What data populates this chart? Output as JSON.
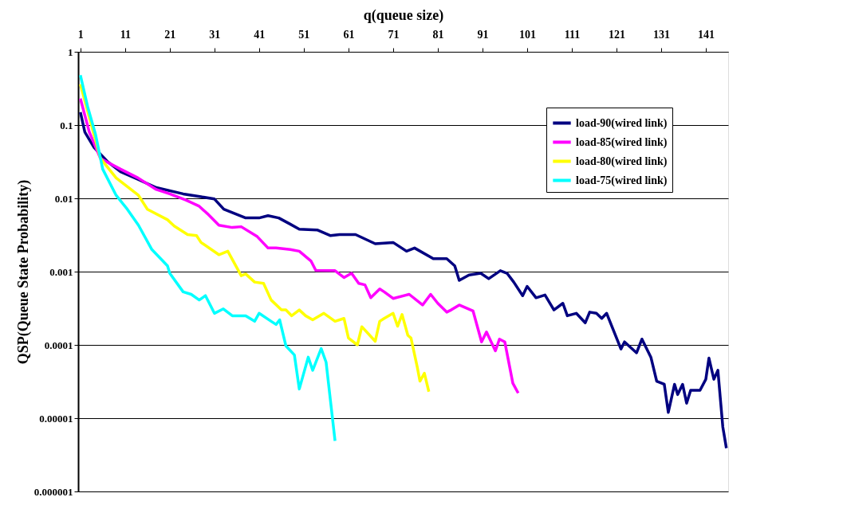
{
  "chart_data": {
    "type": "line",
    "xlabel": "q(queue size)",
    "ylabel": "QSP(Queue State Probability)",
    "xlim": [
      0.5,
      146
    ],
    "xticks": [
      1,
      11,
      21,
      31,
      41,
      51,
      61,
      71,
      81,
      91,
      101,
      111,
      121,
      131,
      141
    ],
    "ylim": [
      1e-06,
      1
    ],
    "yticks": [
      1,
      0.1,
      0.01,
      0.001,
      0.0001,
      {
        "value": 1e-05,
        "label": "0.00001"
      },
      {
        "value": 1e-06,
        "label": "0.000001"
      }
    ],
    "log": "y",
    "grid": "y",
    "legend": "top right",
    "marker": "none",
    "line_style": "solid",
    "series": [
      {
        "name": "load-90(wired link)",
        "color": "#000080",
        "x": [
          1,
          2,
          4,
          7,
          10,
          14,
          18,
          24,
          28,
          31,
          33.1,
          38,
          41,
          43,
          45.4,
          47.8,
          50,
          54,
          57,
          59,
          62.6,
          67,
          71,
          74,
          75.8,
          80,
          83,
          84.8,
          85.8,
          88,
          90.6,
          92.4,
          95,
          96.5,
          98,
          100,
          101,
          103,
          105,
          107,
          109,
          110,
          112,
          114,
          115,
          116.5,
          117.7,
          118.8,
          122,
          122.8,
          125.5,
          126.7,
          128.7,
          130,
          131.7,
          132.6,
          134,
          134.7,
          135.8,
          136.7,
          137.6,
          139.7,
          141,
          141.7,
          142.8,
          143.7,
          144.8,
          145.6
        ],
        "values": [
          0.15,
          0.08,
          0.05,
          0.032,
          0.023,
          0.018,
          0.014,
          0.0115,
          0.0105,
          0.0098,
          0.0071,
          0.0054,
          0.0054,
          0.0058,
          0.0054,
          0.0045,
          0.0038,
          0.0037,
          0.0031,
          0.0032,
          0.0032,
          0.0024,
          0.0025,
          0.0019,
          0.0021,
          0.0015,
          0.0015,
          0.0012,
          0.00076,
          0.0009,
          0.00095,
          0.0008,
          0.00103,
          0.00095,
          0.00072,
          0.00047,
          0.00063,
          0.00044,
          0.00048,
          0.0003,
          0.00037,
          0.00025,
          0.00027,
          0.0002,
          0.00028,
          0.00027,
          0.00023,
          0.00027,
          8.8e-05,
          0.00011,
          7.8e-05,
          0.00012,
          6.8e-05,
          3.2e-05,
          2.9e-05,
          1.2e-05,
          2.9e-05,
          2.1e-05,
          2.9e-05,
          1.6e-05,
          2.4e-05,
          2.4e-05,
          3.4e-05,
          6.6e-05,
          3.4e-05,
          4.5e-05,
          7.6e-06,
          3.9e-06
        ]
      },
      {
        "name": "load-85(wired link)",
        "color": "#ff00ff",
        "x": [
          1,
          3,
          5.5,
          10,
          13.9,
          18,
          21,
          24.6,
          27.6,
          29.4,
          32,
          35,
          37,
          40.6,
          43,
          44.8,
          48,
          50,
          52.6,
          53.7,
          58,
          60,
          61.7,
          63.3,
          64.7,
          66,
          68,
          69,
          71,
          74.6,
          77.6,
          79.4,
          81,
          83,
          84,
          85.8,
          88.9,
          90.8,
          91.9,
          93.9,
          94.8,
          96,
          97.8,
          99
        ],
        "values": [
          0.23,
          0.08,
          0.035,
          0.025,
          0.019,
          0.0132,
          0.0115,
          0.0095,
          0.0078,
          0.0062,
          0.0043,
          0.004,
          0.0041,
          0.003,
          0.0021,
          0.0021,
          0.002,
          0.0019,
          0.0014,
          0.00104,
          0.00103,
          0.00083,
          0.00095,
          0.00069,
          0.00066,
          0.00044,
          0.00058,
          0.00053,
          0.00043,
          0.00049,
          0.00035,
          0.00049,
          0.00037,
          0.00028,
          0.0003,
          0.00035,
          0.00029,
          0.00011,
          0.00015,
          8.3e-05,
          0.00012,
          0.00011,
          3e-05,
          2.2e-05
        ]
      },
      {
        "name": "load-80(wired link)",
        "color": "#ffff00",
        "x": [
          1,
          5.5,
          9,
          14,
          16,
          20.5,
          22,
          25,
          27,
          28,
          32,
          34,
          37,
          38,
          40,
          42,
          43.7,
          46,
          47,
          48.3,
          50,
          51.4,
          53,
          55.5,
          58,
          60,
          61,
          63,
          64,
          67,
          68,
          69,
          71,
          72,
          73,
          74.3,
          75,
          76.4,
          77,
          78,
          79
        ],
        "values": [
          0.36,
          0.035,
          0.019,
          0.011,
          0.0071,
          0.0051,
          0.0042,
          0.0032,
          0.0031,
          0.0025,
          0.0017,
          0.0019,
          0.00088,
          0.00093,
          0.00072,
          0.00069,
          0.00041,
          0.0003,
          0.0003,
          0.00025,
          0.0003,
          0.00025,
          0.00022,
          0.00027,
          0.00021,
          0.00023,
          0.000124,
          0.0001,
          0.000177,
          0.000112,
          0.00021,
          0.00023,
          0.00027,
          0.00018,
          0.00026,
          0.000135,
          0.000124,
          5e-05,
          3.2e-05,
          4.1e-05,
          2.3e-05
        ]
      },
      {
        "name": "load-75(wired link)",
        "color": "#00ffff",
        "x": [
          1,
          2.6,
          4.4,
          6,
          9,
          11.5,
          14,
          17,
          20.5,
          21,
          24,
          25.8,
          27.6,
          29,
          31,
          33,
          35,
          38,
          40,
          41,
          43.7,
          44.8,
          45.6,
          47,
          48.9,
          50,
          52,
          53,
          54.9,
          56,
          58
        ],
        "values": [
          0.48,
          0.18,
          0.074,
          0.025,
          0.011,
          0.0071,
          0.0043,
          0.002,
          0.0012,
          0.00095,
          0.00053,
          0.00049,
          0.00041,
          0.00047,
          0.00027,
          0.00031,
          0.00025,
          0.00025,
          0.00021,
          0.00027,
          0.00021,
          0.00019,
          0.00022,
          9.7e-05,
          7.3e-05,
          2.5e-05,
          6.8e-05,
          4.5e-05,
          8.9e-05,
          5.8e-05,
          4.9e-06
        ]
      }
    ]
  }
}
